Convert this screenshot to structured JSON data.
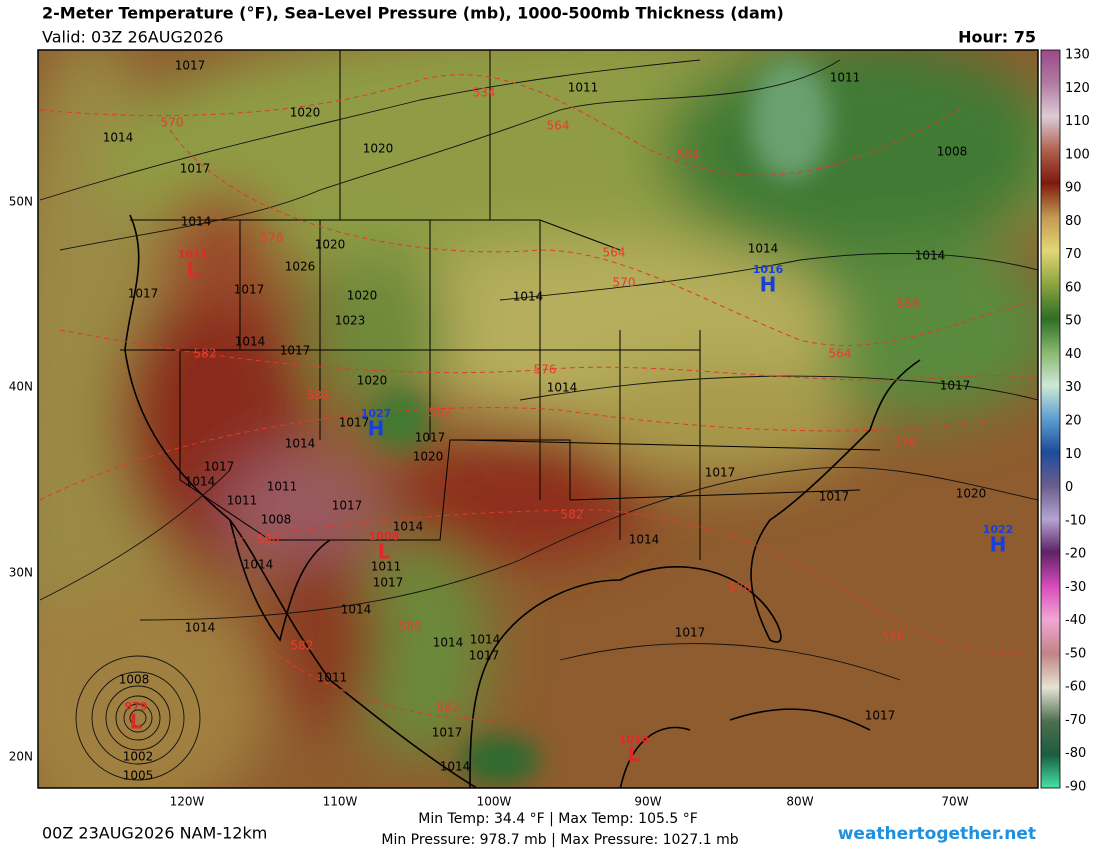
{
  "header": {
    "title": "2-Meter Temperature (°F), Sea-Level Pressure (mb), 1000-500mb Thickness (dam)",
    "valid": "Valid: 03Z 26AUG2026",
    "hour": "Hour: 75"
  },
  "colorbar": {
    "ticks": [
      130,
      120,
      110,
      100,
      90,
      80,
      70,
      60,
      50,
      40,
      30,
      20,
      10,
      0,
      -10,
      -20,
      -30,
      -40,
      -50,
      -60,
      -70,
      -80,
      -90
    ]
  },
  "axes": {
    "lat_labels": [
      "50N",
      "40N",
      "30N",
      "20N"
    ],
    "lon_labels": [
      "120W",
      "110W",
      "100W",
      "90W",
      "80W",
      "70W"
    ]
  },
  "map": {
    "isobar_labels": [
      1017,
      1011,
      1011,
      1020,
      1014,
      1020,
      1008,
      1017,
      1014,
      1020,
      1026,
      1014,
      1014,
      1017,
      1017,
      1020,
      1014,
      1023,
      1014,
      1017,
      1020,
      1017,
      1014,
      1017,
      1014,
      1017,
      1020,
      1017,
      1017,
      1014,
      1011,
      1011,
      1017,
      1017,
      1020,
      1008,
      1014,
      1014,
      1011,
      1017,
      1014,
      1014,
      1014,
      1014,
      1014,
      1017,
      1017,
      1011,
      1008,
      1017,
      1017,
      1014,
      1002,
      1005
    ],
    "thickness_labels": [
      534,
      564,
      570,
      564,
      576,
      564,
      570,
      582,
      588,
      582,
      576,
      564,
      558,
      570,
      582,
      588,
      588,
      570,
      582,
      576,
      582
    ],
    "centers": [
      {
        "symbol": "H",
        "pressure": 1016
      },
      {
        "symbol": "H",
        "pressure": 1027
      },
      {
        "symbol": "H",
        "pressure": 1022
      },
      {
        "symbol": "L",
        "pressure": 1011
      },
      {
        "symbol": "L",
        "pressure": 1008
      },
      {
        "symbol": "L",
        "pressure": 1014
      },
      {
        "symbol": "L",
        "pressure": 979
      }
    ]
  },
  "footer": {
    "run": "00Z 23AUG2026 NAM-12km",
    "temps": "Min Temp:  34.4 °F | Max Temp: 105.5 °F",
    "pressures": "Min Pressure: 978.7 mb | Max Pressure: 1027.1 mb",
    "site": "weathertogether.net"
  }
}
